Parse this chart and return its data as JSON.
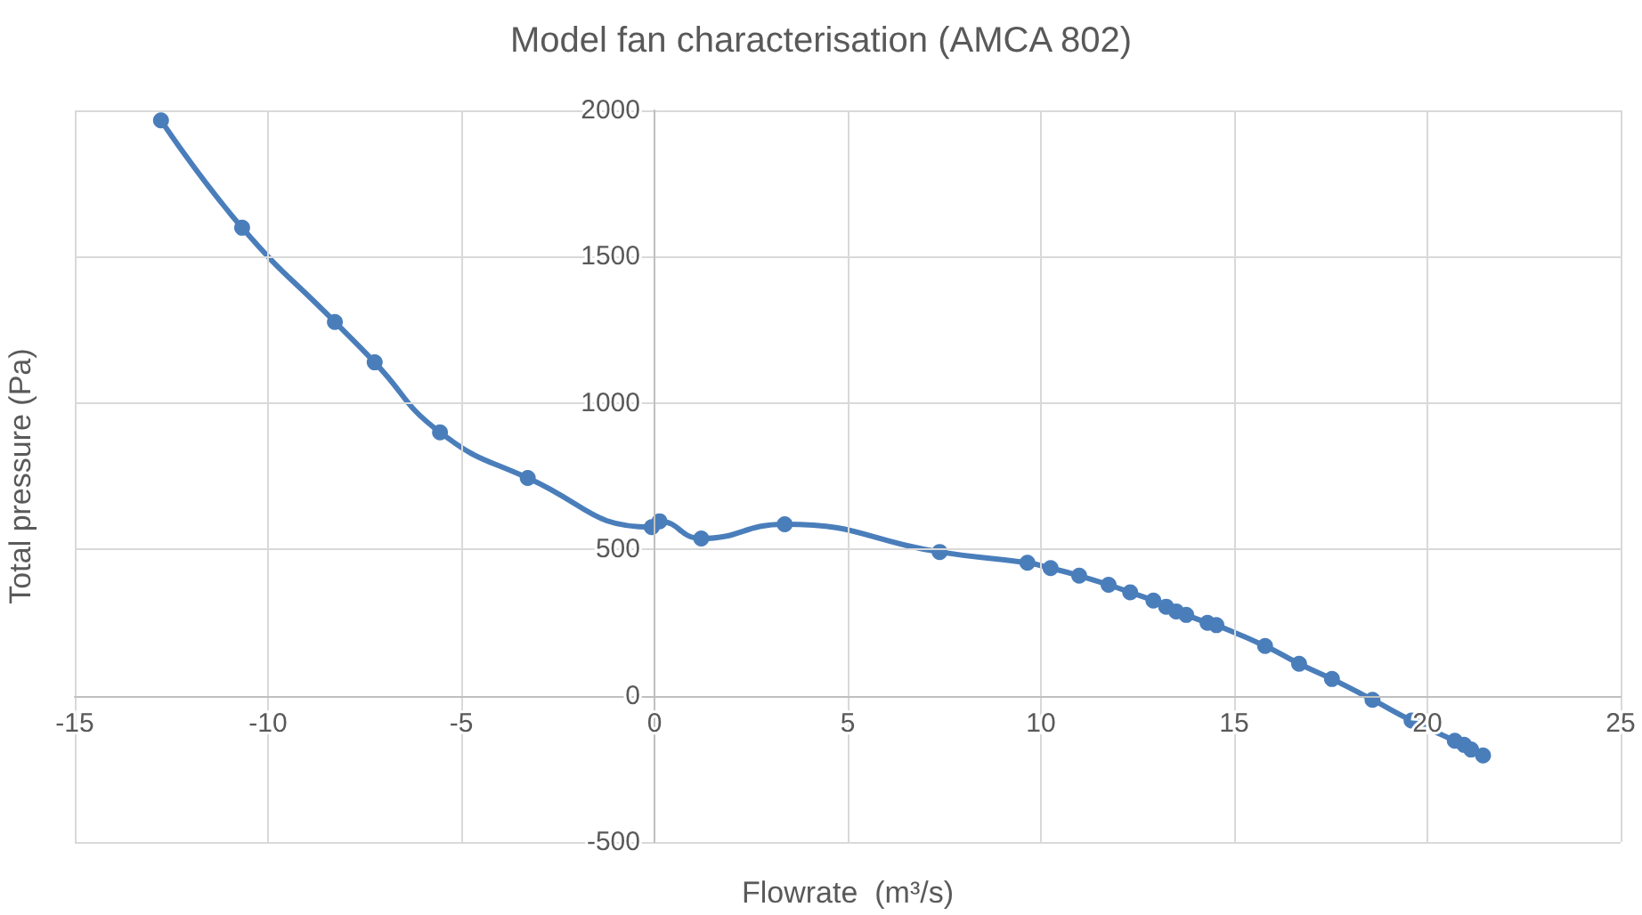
{
  "chart_data": {
    "type": "line",
    "title": "Model fan characterisation (AMCA 802)",
    "xlabel": "Flowrate  (m³/s)",
    "ylabel": "Total pressure (Pa)",
    "series": [
      {
        "color": "#4a7ebb",
        "x": [
          -12.77,
          -10.67,
          -8.27,
          -7.24,
          -5.55,
          -3.28,
          -0.07,
          0.13,
          1.21,
          3.37,
          7.38,
          9.65,
          10.25,
          10.99,
          11.75,
          12.31,
          12.91,
          13.24,
          13.5,
          13.76,
          14.31,
          14.54,
          15.8,
          16.68,
          17.53,
          18.58,
          19.59,
          20.71,
          20.95,
          21.13,
          21.44
        ],
        "values": [
          1966,
          1599,
          1277,
          1139,
          900,
          744,
          576,
          596,
          537,
          586,
          491,
          454,
          436,
          410,
          379,
          353,
          325,
          304,
          288,
          276,
          249,
          241,
          170,
          109,
          57,
          -14,
          -85,
          -154,
          -168,
          -184,
          -204
        ]
      }
    ],
    "xlim": [
      -15,
      25
    ],
    "xticks": [
      -15,
      -10,
      -5,
      0,
      5,
      10,
      15,
      20,
      25
    ],
    "ylim": [
      -500,
      2000
    ],
    "yticks": [
      -500,
      0,
      500,
      1000,
      1500,
      2000
    ],
    "grid": true,
    "marker": "circle",
    "line_style": "solid"
  }
}
